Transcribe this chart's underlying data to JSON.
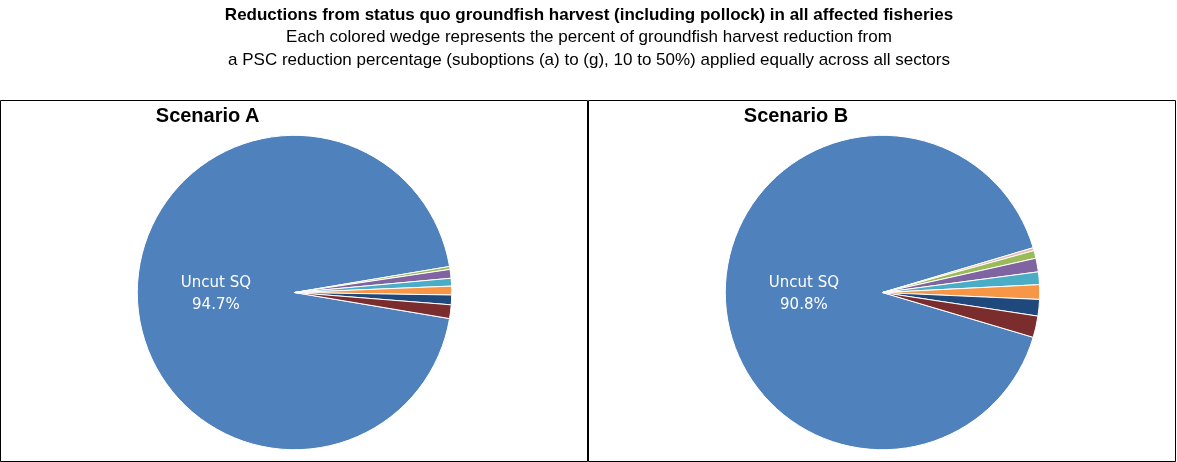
{
  "chart_data": [
    {
      "type": "other",
      "title": "Reductions from status quo groundfish harvest (including pollock) in all affected fisheries",
      "subtitle": "Each colored wedge represents the percent of groundfish harvest reduction from\na PSC reduction percentage (suboptions (a) to (g), 10 to 50%) applied equally across all sectors"
    },
    {
      "type": "pie",
      "title": "Scenario A",
      "categories": [
        "Uncut SQ",
        null,
        null,
        null,
        null,
        null,
        null
      ],
      "values": [
        94.7,
        0.3,
        0.9,
        0.8,
        0.9,
        1.0,
        1.4
      ],
      "colors": [
        "#4f81bd",
        "#9bbb59",
        "#8064a2",
        "#4bacc6",
        "#f79646",
        "#1f497d",
        "#7b2c2c"
      ],
      "value_labels": [
        "94.7%",
        null,
        null,
        null,
        null,
        null,
        null
      ]
    },
    {
      "type": "pie",
      "title": "Scenario B",
      "categories": [
        "Uncut SQ",
        null,
        null,
        null,
        null,
        null,
        null,
        null
      ],
      "values": [
        90.8,
        0.3,
        0.8,
        1.4,
        1.3,
        1.5,
        1.7,
        2.2
      ],
      "colors": [
        "#4f81bd",
        "#e6b9b8",
        "#9bbb59",
        "#8064a2",
        "#4bacc6",
        "#f79646",
        "#1f497d",
        "#7b2c2c"
      ],
      "value_labels": [
        "90.8%",
        null,
        null,
        null,
        null,
        null,
        null,
        null
      ]
    }
  ]
}
